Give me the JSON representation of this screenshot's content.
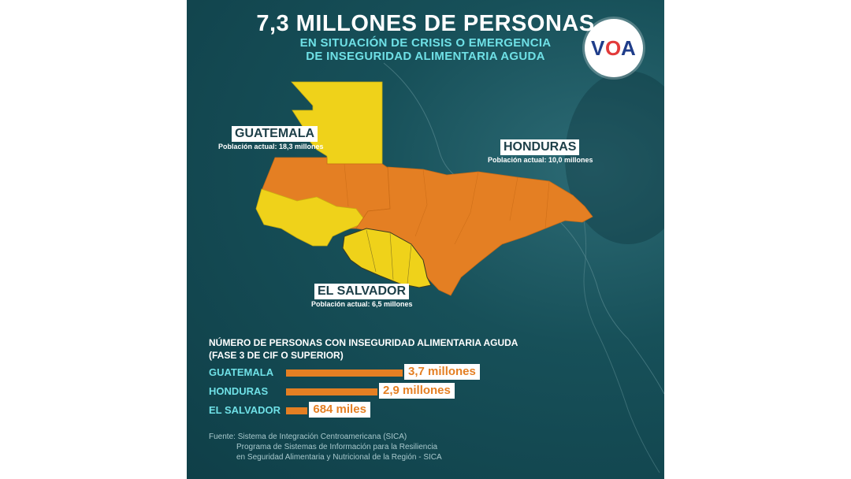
{
  "header": {
    "title": "7,3 MILLONES DE PERSONAS",
    "subtitle_line1": "EN SITUACIÓN DE CRISIS O EMERGENCIA",
    "subtitle_line2": "DE INSEGURIDAD ALIMENTARIA AGUDA"
  },
  "logo": {
    "v": "V",
    "o": "O",
    "a": "A"
  },
  "map": {
    "countries": [
      {
        "name": "GUATEMALA",
        "population": "Población actual: 18,3 millones"
      },
      {
        "name": "HONDURAS",
        "population": "Población actual: 10,0 millones"
      },
      {
        "name": "EL SALVADOR",
        "population": "Población actual: 6,5 millones"
      }
    ],
    "colors": {
      "yellow": "#efd21a",
      "orange": "#e47f23"
    }
  },
  "bars": {
    "heading_line1": "NÚMERO DE PERSONAS CON INSEGURIDAD ALIMENTARIA AGUDA",
    "heading_line2": "(FASE 3 DE CIF O SUPERIOR)"
  },
  "chart_data": {
    "type": "bar",
    "categories": [
      "GUATEMALA",
      "HONDURAS",
      "EL SALVADOR"
    ],
    "values": [
      3700000,
      2900000,
      684000
    ],
    "value_labels": [
      "3,7 millones",
      "2,9 millones",
      "684 miles"
    ],
    "bar_color": "#e47f23"
  },
  "source": {
    "line1": "Fuente: Sistema de Integración Centroamericana (SICA)",
    "line2": "Programa de Sistemas de Información para la Resiliencia",
    "line3": "en Seguridad Alimentaria y Nutricional de la Región - SICA"
  }
}
